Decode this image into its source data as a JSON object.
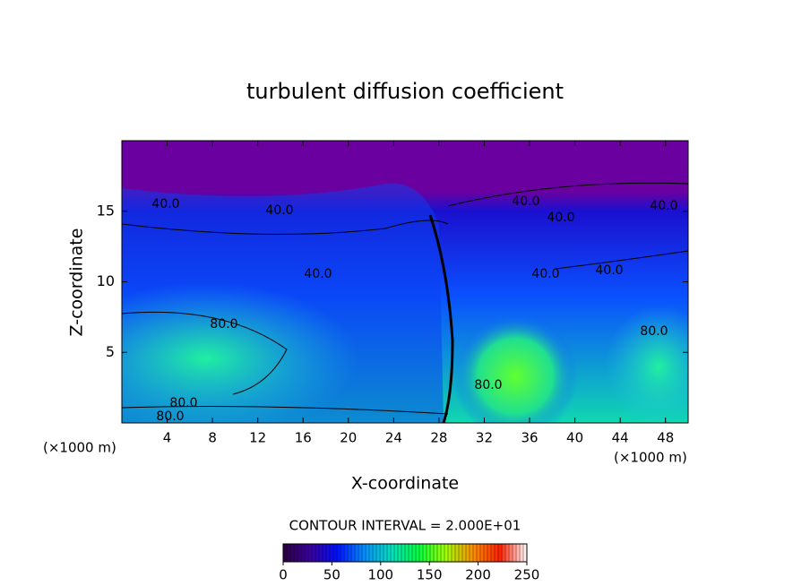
{
  "chart_data": {
    "type": "contour",
    "title": "turbulent diffusion coefficient",
    "x_label": "X-coordinate",
    "y_label": "Z-coordinate",
    "x_unit": "(×1000 m)",
    "xlim": [
      0,
      50
    ],
    "xticks": [
      4,
      8,
      12,
      16,
      20,
      24,
      28,
      32,
      36,
      40,
      44,
      48
    ],
    "ylim": [
      0,
      20
    ],
    "yticks": [
      5,
      10,
      15
    ],
    "contour_interval": "CONTOUR INTERVAL = 2.000E+01",
    "contour_labels": [
      "40.0",
      "40.0",
      "40.0",
      "40.0",
      "40.0",
      "40.0",
      "40.0",
      "40.0",
      "80.0",
      "80.0",
      "80.0",
      "80.0",
      "80.0"
    ],
    "colorbar": {
      "range": [
        0,
        250
      ],
      "ticks": [
        0,
        50,
        100,
        150,
        200,
        250
      ],
      "colors": [
        "#2a0040",
        "#3a00a0",
        "#0010ff",
        "#0090ff",
        "#00e0c0",
        "#00ff40",
        "#a0ff00",
        "#ff9000",
        "#ff2000",
        "#ffffff"
      ]
    }
  }
}
